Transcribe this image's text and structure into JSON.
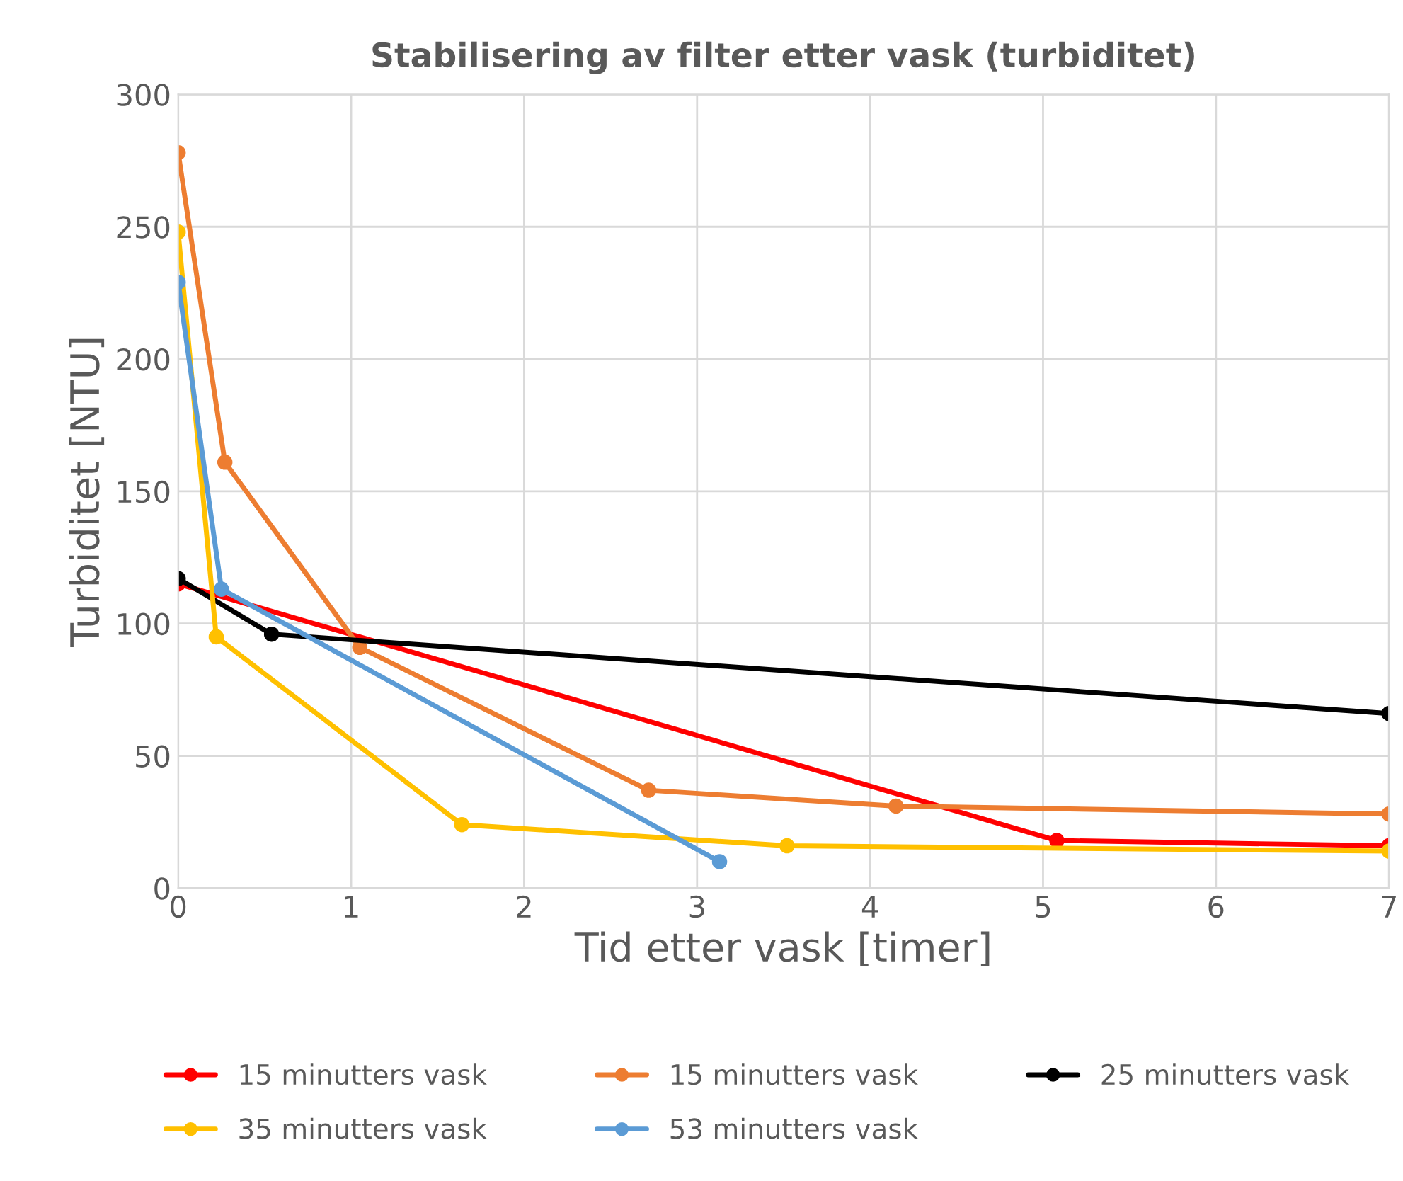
{
  "chart_data": {
    "type": "line",
    "title": "Stabilisering av filter etter vask (turbiditet)",
    "xlabel": "Tid etter vask [timer]",
    "ylabel": "Turbiditet [NTU]",
    "xlim": [
      0,
      7
    ],
    "xticks": [
      0,
      1,
      2,
      3,
      4,
      5,
      6,
      7
    ],
    "ylim": [
      0,
      300
    ],
    "yticks": [
      0,
      50,
      100,
      150,
      200,
      250,
      300
    ],
    "grid": true,
    "legend": "bottom",
    "marker": "circle",
    "line_style": "solid",
    "series": [
      {
        "name": "15 minutters vask",
        "color": "#ff0000",
        "x": [
          0,
          5.08,
          7
        ],
        "values": [
          115,
          18,
          16
        ]
      },
      {
        "name": "15 minutters vask",
        "color": "#ed7d31",
        "x": [
          0,
          0.27,
          1.05,
          2.72,
          4.15,
          7
        ],
        "values": [
          278,
          161,
          91,
          37,
          31,
          28
        ]
      },
      {
        "name": "25 minutters vask",
        "color": "#000000",
        "x": [
          0,
          0.54,
          7
        ],
        "values": [
          117,
          96,
          66
        ]
      },
      {
        "name": "35 minutters vask",
        "color": "#ffc000",
        "x": [
          0,
          0.22,
          1.64,
          3.52,
          7
        ],
        "values": [
          248,
          95,
          24,
          16,
          14
        ]
      },
      {
        "name": "53 minutters vask",
        "color": "#5b9bd5",
        "x": [
          0,
          0.25,
          3.13
        ],
        "values": [
          229,
          113,
          10
        ]
      }
    ]
  }
}
